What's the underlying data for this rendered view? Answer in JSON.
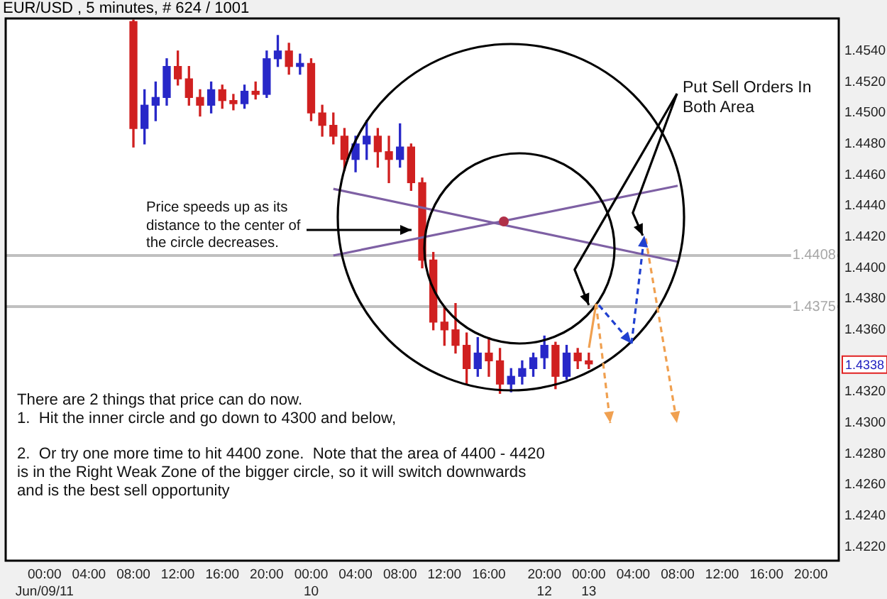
{
  "chart_data": {
    "type": "candlestick",
    "title": "EUR/USD , 5 minutes, # 624 / 1001",
    "categories": [
      null,
      null,
      null,
      "00:00\nJun/09/11",
      null,
      null,
      null,
      "04:00",
      null,
      null,
      null,
      "08:00",
      null,
      null,
      null,
      "12:00",
      null,
      null,
      null,
      "16:00",
      null,
      null,
      null,
      "20:00",
      null,
      null,
      null,
      "00:00\n10",
      null,
      null,
      null,
      "04:00",
      null,
      null,
      null,
      "08:00",
      null,
      null,
      null,
      "12:00",
      null,
      null,
      null,
      "16:00",
      null,
      null,
      null,
      null,
      "20:00\n12",
      null,
      null,
      null,
      "00:00\n13",
      null,
      null,
      null,
      "04:00",
      null,
      null,
      null,
      "08:00",
      null,
      null,
      null,
      "12:00",
      null,
      null,
      null,
      "16:00",
      null,
      null,
      null,
      "20:00",
      null,
      null
    ],
    "ohlc": [
      null,
      null,
      null,
      null,
      null,
      null,
      null,
      null,
      null,
      null,
      null,
      [
        1.4559,
        1.456,
        1.4478,
        1.449
      ],
      [
        1.449,
        1.4515,
        1.448,
        1.4505
      ],
      [
        1.4505,
        1.452,
        1.4495,
        1.451
      ],
      [
        1.451,
        1.4535,
        1.4505,
        1.453
      ],
      [
        1.453,
        1.454,
        1.4518,
        1.4522
      ],
      [
        1.4522,
        1.453,
        1.4505,
        1.451
      ],
      [
        1.451,
        1.4515,
        1.4498,
        1.4505
      ],
      [
        1.4505,
        1.452,
        1.45,
        1.4515
      ],
      [
        1.4515,
        1.4518,
        1.4503,
        1.4508
      ],
      [
        1.4508,
        1.4512,
        1.4502,
        1.4506
      ],
      [
        1.4506,
        1.4518,
        1.4503,
        1.4514
      ],
      [
        1.4514,
        1.452,
        1.4509,
        1.4512
      ],
      [
        1.4512,
        1.454,
        1.451,
        1.4535
      ],
      [
        1.4535,
        1.455,
        1.453,
        1.454
      ],
      [
        1.454,
        1.4545,
        1.4525,
        1.453
      ],
      [
        1.453,
        1.4538,
        1.4525,
        1.4532
      ],
      [
        1.4532,
        1.4535,
        1.4495,
        1.45
      ],
      [
        1.45,
        1.4505,
        1.4485,
        1.4492
      ],
      [
        1.4492,
        1.45,
        1.448,
        1.4485
      ],
      [
        1.4485,
        1.449,
        1.4463,
        1.447
      ],
      [
        1.447,
        1.4485,
        1.4462,
        1.448
      ],
      [
        1.448,
        1.4495,
        1.447,
        1.4485
      ],
      [
        1.4485,
        1.449,
        1.4465,
        1.4475
      ],
      [
        1.4475,
        1.4485,
        1.4455,
        1.447
      ],
      [
        1.447,
        1.4493,
        1.4465,
        1.4478
      ],
      [
        1.4478,
        1.448,
        1.445,
        1.4455
      ],
      [
        1.4455,
        1.4458,
        1.44,
        1.4405
      ],
      [
        1.4405,
        1.441,
        1.436,
        1.4365
      ],
      [
        1.4365,
        1.4375,
        1.435,
        1.436
      ],
      [
        1.436,
        1.4377,
        1.4345,
        1.435
      ],
      [
        1.435,
        1.4358,
        1.4325,
        1.4335
      ],
      [
        1.4335,
        1.4355,
        1.433,
        1.4345
      ],
      [
        1.4345,
        1.4355,
        1.433,
        1.434
      ],
      [
        1.434,
        1.4348,
        1.4319,
        1.4325
      ],
      [
        1.4325,
        1.4335,
        1.432,
        1.433
      ],
      [
        1.433,
        1.434,
        1.4325,
        1.4335
      ],
      [
        1.4335,
        1.4345,
        1.433,
        1.4342
      ],
      [
        1.4342,
        1.4356,
        1.4335,
        1.435
      ],
      [
        1.435,
        1.4352,
        1.4322,
        1.433
      ],
      [
        1.433,
        1.435,
        1.4328,
        1.4345
      ],
      [
        1.4345,
        1.4348,
        1.4335,
        1.434
      ],
      [
        1.434,
        1.4345,
        1.4335,
        1.4338
      ],
      null,
      null,
      null,
      null,
      null,
      null,
      null,
      null,
      null,
      null,
      null,
      null,
      null,
      null,
      null,
      null,
      null,
      null,
      null,
      null,
      null,
      null
    ],
    "colors": [
      null,
      null,
      null,
      null,
      null,
      null,
      null,
      null,
      null,
      null,
      null,
      "#d02020",
      "#2828c8",
      "#2828c8",
      "#2828c8",
      "#d02020",
      "#d02020",
      "#d02020",
      "#2828c8",
      "#d02020",
      "#d02020",
      "#2828c8",
      "#d02020",
      "#2828c8",
      "#2828c8",
      "#d02020",
      "#2828c8",
      "#d02020",
      "#d02020",
      "#d02020",
      "#d02020",
      "#2828c8",
      "#2828c8",
      "#d02020",
      "#d02020",
      "#2828c8",
      "#d02020",
      "#d02020",
      "#d02020",
      "#d02020",
      "#d02020",
      "#d02020",
      "#2828c8",
      "#d02020",
      "#d02020",
      "#2828c8",
      "#2828c8",
      "#2828c8",
      "#2828c8",
      "#d02020",
      "#2828c8",
      "#d02020",
      "#d02020",
      null,
      null,
      null,
      null,
      null,
      null,
      null,
      null,
      null,
      null,
      null,
      null,
      null,
      null,
      null,
      null,
      null,
      null,
      null,
      null,
      null,
      null
    ],
    "series": [
      {
        "type": "line",
        "color": "#7e60a4",
        "values": [
          null,
          null,
          null,
          null,
          null,
          null,
          null,
          null,
          null,
          null,
          null,
          null,
          null,
          null,
          null,
          null,
          null,
          null,
          null,
          null,
          null,
          null,
          null,
          null,
          null,
          null,
          null,
          null,
          null,
          1.4451,
          null,
          null,
          null,
          null,
          null,
          null,
          null,
          null,
          null,
          null,
          null,
          null,
          null,
          null,
          null,
          null,
          null,
          null,
          null,
          null,
          null,
          null,
          null,
          null,
          null,
          null,
          null,
          null,
          null,
          null,
          1.4404,
          null,
          null,
          null,
          null,
          null,
          null,
          null,
          null,
          null,
          null,
          null,
          null,
          null,
          null
        ]
      },
      {
        "type": "line",
        "color": "#7e60a4",
        "values": [
          null,
          null,
          null,
          null,
          null,
          null,
          null,
          null,
          null,
          null,
          null,
          null,
          null,
          null,
          null,
          null,
          null,
          null,
          null,
          null,
          null,
          null,
          null,
          null,
          null,
          null,
          null,
          null,
          null,
          1.4408,
          null,
          null,
          null,
          null,
          null,
          null,
          null,
          null,
          null,
          null,
          null,
          null,
          null,
          null,
          null,
          null,
          null,
          null,
          null,
          null,
          null,
          null,
          null,
          null,
          null,
          null,
          null,
          null,
          null,
          null,
          1.4453,
          null,
          null,
          null,
          null,
          null,
          null,
          null,
          null,
          null,
          null,
          null,
          null,
          null,
          null
        ]
      }
    ],
    "ylim": [
      1.4211,
      1.4561
    ],
    "yticks": [
      {
        "value": 1.422,
        "label": "1.4220"
      },
      {
        "value": 1.424,
        "label": "1.4240"
      },
      {
        "value": 1.426,
        "label": "1.4260"
      },
      {
        "value": 1.428,
        "label": "1.4280"
      },
      {
        "value": 1.43,
        "label": "1.4300"
      },
      {
        "value": 1.432,
        "label": "1.4320"
      },
      {
        "value": 1.436,
        "label": "1.4360"
      },
      {
        "value": 1.438,
        "label": "1.4380"
      },
      {
        "value": 1.44,
        "label": "1.4400"
      },
      {
        "value": 1.442,
        "label": "1.4420"
      },
      {
        "value": 1.444,
        "label": "1.4440"
      },
      {
        "value": 1.446,
        "label": "1.4460"
      },
      {
        "value": 1.448,
        "label": "1.4480"
      },
      {
        "value": 1.45,
        "label": "1.4500"
      },
      {
        "value": 1.452,
        "label": "1.4520"
      },
      {
        "value": 1.454,
        "label": "1.4540"
      }
    ],
    "ref_lines": [
      {
        "axis": "y",
        "value": 1.4408,
        "label": "1.4408",
        "color": "#c0c0c0"
      },
      {
        "axis": "y",
        "value": 1.4375,
        "label": "1.4375",
        "color": "#c0c0c0"
      }
    ],
    "annotations": [
      "Price speeds up as its distance to the center of the circle decreases.",
      {
        "text": "Put Sell Orders In Both Area",
        "x": "00:00\n13",
        "y": 1.4376
      },
      "There are 2 things that price can do now.\n1.  Hit the inner circle and go down to 4300 and below,\n\n2.  Or try one more time to hit 4400 zone.  Note that the area of 4400 - 4420\nis in the Right Weak Zone of the bigger circle, so it will switch downwards\nand is the best sell opportunity",
      {
        "text": "1.4338",
        "y": 1.4338
      }
    ]
  }
}
